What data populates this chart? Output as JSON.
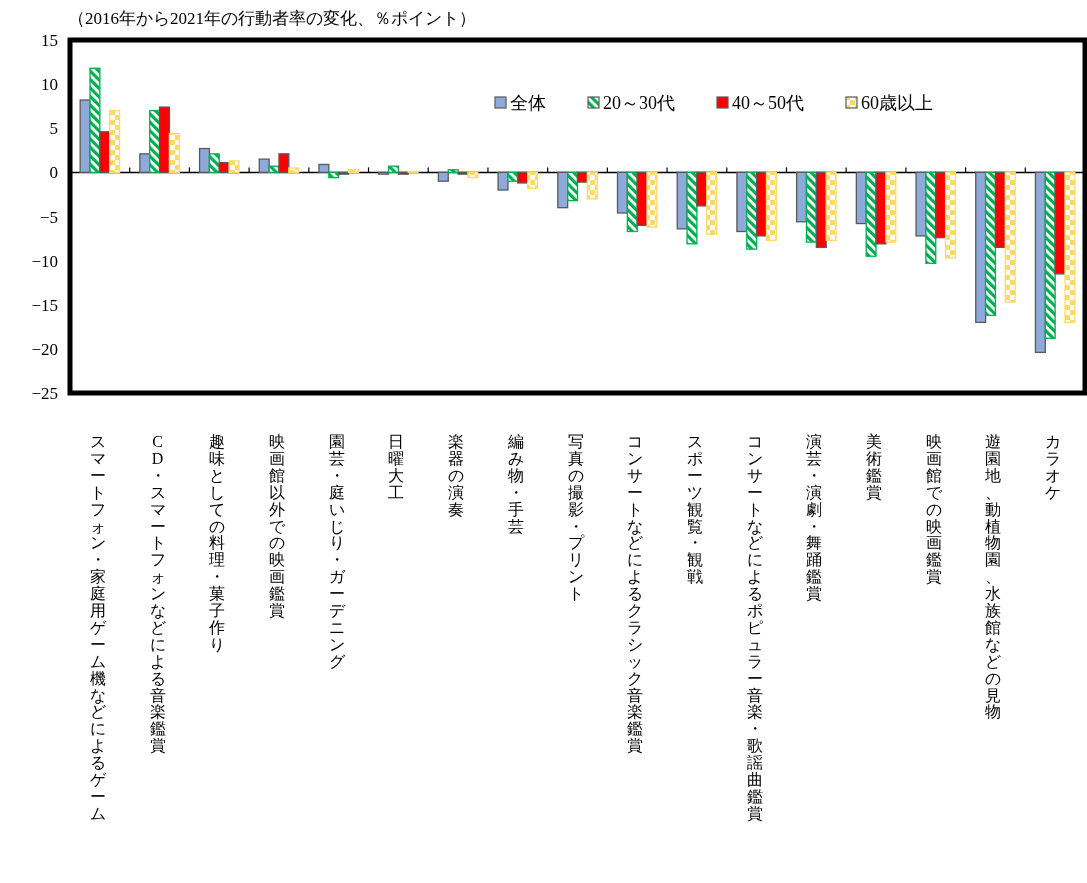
{
  "chart_data": {
    "type": "bar",
    "ylabel": "（2016年から2021年の行動者率の変化、％ポイント）",
    "categories": [
      "スマートフォン・家庭用ゲーム機などによるゲーム",
      "CD・スマートフォンなどによる音楽鑑賞",
      "趣味としての料理・菓子作り",
      "映画館以外での映画鑑賞",
      "園芸・庭いじり・ガーデニング",
      "日曜大工",
      "楽器の演奏",
      "編み物・手芸",
      "写真の撮影・プリント",
      "コンサートなどによるクラシック音楽鑑賞",
      "スポーツ観覧・観戦",
      "コンサートなどによるポピュラー音楽・歌謡曲鑑賞",
      "演芸・演劇・舞踊鑑賞",
      "美術鑑賞",
      "映画館での映画鑑賞",
      "遊園地、動植物園、水族館などの見物",
      "カラオケ"
    ],
    "series": [
      {
        "name": "全体",
        "color": "#8eaadb",
        "values": [
          8.2,
          2.1,
          2.7,
          1.5,
          0.9,
          -0.2,
          -1.0,
          -2.0,
          -4.0,
          -4.6,
          -6.4,
          -6.7,
          -5.6,
          -5.8,
          -7.2,
          -17.0,
          -20.4
        ]
      },
      {
        "name": "20～30代",
        "color": "#00b050",
        "values": [
          11.8,
          7.0,
          2.1,
          0.7,
          -0.6,
          0.7,
          0.3,
          -1.0,
          -3.2,
          -6.7,
          -8.1,
          -8.7,
          -7.9,
          -9.5,
          -10.3,
          -16.2,
          -18.8
        ]
      },
      {
        "name": "40～50代",
        "color": "#ff0000",
        "values": [
          4.6,
          7.4,
          1.1,
          2.1,
          -0.2,
          -0.2,
          -0.2,
          -1.2,
          -1.1,
          -6.0,
          -3.8,
          -7.2,
          -8.5,
          -8.1,
          -7.4,
          -8.5,
          -11.5
        ]
      },
      {
        "name": "60歳以上",
        "color": "#ffd966",
        "values": [
          7.0,
          4.4,
          1.3,
          0.5,
          0.3,
          0.1,
          -0.6,
          -1.8,
          -3.0,
          -6.2,
          -7.0,
          -7.7,
          -7.7,
          -7.9,
          -9.7,
          -14.7,
          -17.0
        ]
      }
    ],
    "ylim": [
      -25,
      15
    ],
    "yticks": [
      -25,
      -20,
      -15,
      -10,
      -5,
      0,
      5,
      10,
      15
    ],
    "legend": "top right"
  }
}
